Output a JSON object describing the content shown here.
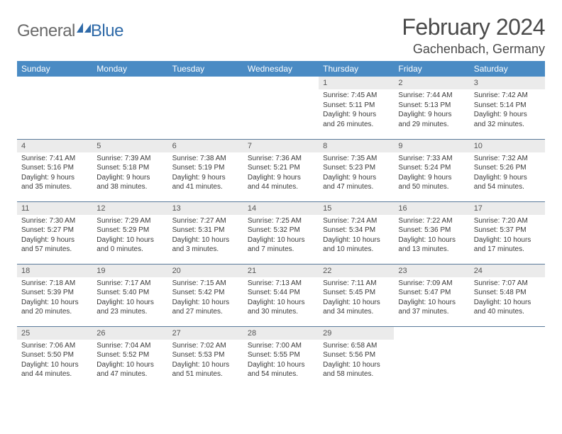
{
  "brand": {
    "part1": "General",
    "part2": "Blue"
  },
  "title": "February 2024",
  "location": "Gachenbach, Germany",
  "style": {
    "header_bg": "#4a8bc4",
    "header_text": "#ffffff",
    "daynum_bg": "#ebebeb",
    "border_color": "#5a7a9a",
    "body_text": "#3a3a3a",
    "title_color": "#4a4a4a",
    "logo_gray": "#6a6a6a",
    "logo_blue": "#2f6aa8",
    "page_bg": "#ffffff",
    "cell_font_size": 10,
    "header_font_size": 12,
    "title_font_size": 32,
    "location_font_size": 18
  },
  "weekdays": [
    "Sunday",
    "Monday",
    "Tuesday",
    "Wednesday",
    "Thursday",
    "Friday",
    "Saturday"
  ],
  "weeks": [
    [
      null,
      null,
      null,
      null,
      {
        "n": "1",
        "sr": "7:45 AM",
        "ss": "5:11 PM",
        "dl": "9 hours and 26 minutes."
      },
      {
        "n": "2",
        "sr": "7:44 AM",
        "ss": "5:13 PM",
        "dl": "9 hours and 29 minutes."
      },
      {
        "n": "3",
        "sr": "7:42 AM",
        "ss": "5:14 PM",
        "dl": "9 hours and 32 minutes."
      }
    ],
    [
      {
        "n": "4",
        "sr": "7:41 AM",
        "ss": "5:16 PM",
        "dl": "9 hours and 35 minutes."
      },
      {
        "n": "5",
        "sr": "7:39 AM",
        "ss": "5:18 PM",
        "dl": "9 hours and 38 minutes."
      },
      {
        "n": "6",
        "sr": "7:38 AM",
        "ss": "5:19 PM",
        "dl": "9 hours and 41 minutes."
      },
      {
        "n": "7",
        "sr": "7:36 AM",
        "ss": "5:21 PM",
        "dl": "9 hours and 44 minutes."
      },
      {
        "n": "8",
        "sr": "7:35 AM",
        "ss": "5:23 PM",
        "dl": "9 hours and 47 minutes."
      },
      {
        "n": "9",
        "sr": "7:33 AM",
        "ss": "5:24 PM",
        "dl": "9 hours and 50 minutes."
      },
      {
        "n": "10",
        "sr": "7:32 AM",
        "ss": "5:26 PM",
        "dl": "9 hours and 54 minutes."
      }
    ],
    [
      {
        "n": "11",
        "sr": "7:30 AM",
        "ss": "5:27 PM",
        "dl": "9 hours and 57 minutes."
      },
      {
        "n": "12",
        "sr": "7:29 AM",
        "ss": "5:29 PM",
        "dl": "10 hours and 0 minutes."
      },
      {
        "n": "13",
        "sr": "7:27 AM",
        "ss": "5:31 PM",
        "dl": "10 hours and 3 minutes."
      },
      {
        "n": "14",
        "sr": "7:25 AM",
        "ss": "5:32 PM",
        "dl": "10 hours and 7 minutes."
      },
      {
        "n": "15",
        "sr": "7:24 AM",
        "ss": "5:34 PM",
        "dl": "10 hours and 10 minutes."
      },
      {
        "n": "16",
        "sr": "7:22 AM",
        "ss": "5:36 PM",
        "dl": "10 hours and 13 minutes."
      },
      {
        "n": "17",
        "sr": "7:20 AM",
        "ss": "5:37 PM",
        "dl": "10 hours and 17 minutes."
      }
    ],
    [
      {
        "n": "18",
        "sr": "7:18 AM",
        "ss": "5:39 PM",
        "dl": "10 hours and 20 minutes."
      },
      {
        "n": "19",
        "sr": "7:17 AM",
        "ss": "5:40 PM",
        "dl": "10 hours and 23 minutes."
      },
      {
        "n": "20",
        "sr": "7:15 AM",
        "ss": "5:42 PM",
        "dl": "10 hours and 27 minutes."
      },
      {
        "n": "21",
        "sr": "7:13 AM",
        "ss": "5:44 PM",
        "dl": "10 hours and 30 minutes."
      },
      {
        "n": "22",
        "sr": "7:11 AM",
        "ss": "5:45 PM",
        "dl": "10 hours and 34 minutes."
      },
      {
        "n": "23",
        "sr": "7:09 AM",
        "ss": "5:47 PM",
        "dl": "10 hours and 37 minutes."
      },
      {
        "n": "24",
        "sr": "7:07 AM",
        "ss": "5:48 PM",
        "dl": "10 hours and 40 minutes."
      }
    ],
    [
      {
        "n": "25",
        "sr": "7:06 AM",
        "ss": "5:50 PM",
        "dl": "10 hours and 44 minutes."
      },
      {
        "n": "26",
        "sr": "7:04 AM",
        "ss": "5:52 PM",
        "dl": "10 hours and 47 minutes."
      },
      {
        "n": "27",
        "sr": "7:02 AM",
        "ss": "5:53 PM",
        "dl": "10 hours and 51 minutes."
      },
      {
        "n": "28",
        "sr": "7:00 AM",
        "ss": "5:55 PM",
        "dl": "10 hours and 54 minutes."
      },
      {
        "n": "29",
        "sr": "6:58 AM",
        "ss": "5:56 PM",
        "dl": "10 hours and 58 minutes."
      },
      null,
      null
    ]
  ]
}
